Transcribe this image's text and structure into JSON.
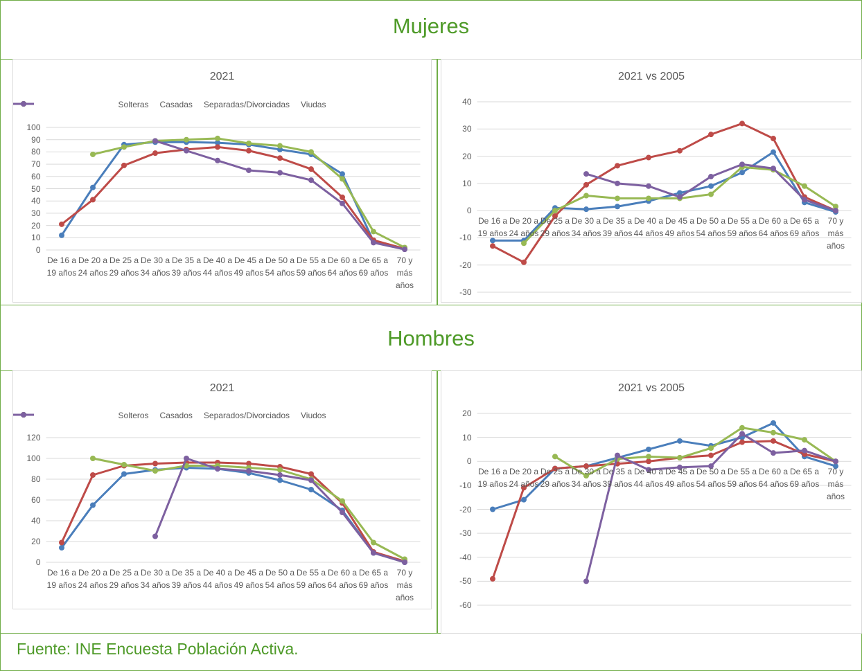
{
  "sections": [
    "Mujeres",
    "Hombres"
  ],
  "source": "Fuente: INE Encuesta Población Activa.",
  "chart_data": [
    {
      "type": "line",
      "title": "2021",
      "categories": [
        "De 16 a 19 años",
        "De 20 a 24 años",
        "De 25 a 29 años",
        "De 30 a 34 años",
        "De 35 a 39 años",
        "De 40 a 44 años",
        "De 45 a 49 años",
        "De 50 a 54 años",
        "De 55 a 59 años",
        "De 60 a 64 años",
        "De 65 a 69 años",
        "70 y más años"
      ],
      "series": [
        {
          "name": "Solteras",
          "color": "#4a7ebb",
          "values": [
            12,
            51,
            86,
            88,
            88,
            87.5,
            86,
            82,
            78,
            62,
            7,
            1
          ]
        },
        {
          "name": "Casadas",
          "color": "#be4b48",
          "values": [
            21,
            41,
            69,
            79,
            82,
            84,
            81,
            75,
            66,
            43,
            8,
            1
          ]
        },
        {
          "name": "Separadas/Divorciadas",
          "color": "#98b954",
          "values": [
            null,
            78,
            84,
            89,
            90,
            91,
            87,
            85,
            80,
            58,
            15,
            2
          ]
        },
        {
          "name": "Viudas",
          "color": "#7d60a0",
          "values": [
            null,
            null,
            null,
            89,
            81,
            73,
            65,
            63,
            57,
            38,
            6,
            0.5
          ]
        }
      ],
      "ylim": [
        0,
        100
      ],
      "yticks": [
        0,
        10,
        20,
        30,
        40,
        50,
        60,
        70,
        80,
        90,
        100
      ],
      "grid": true,
      "legend": "top"
    },
    {
      "type": "line",
      "title": "2021 vs 2005",
      "categories": [
        "De 16 a 19 años",
        "De 20 a 24 años",
        "De 25 a 29 años",
        "De 30 a 34 años",
        "De 35 a 39 años",
        "De 40 a 44 años",
        "De 45 a 49 años",
        "De 50 a 54 años",
        "De 55 a 59 años",
        "De 60 a 64 años",
        "De 65 a 69 años",
        "70 y más años"
      ],
      "series": [
        {
          "color": "#4a7ebb",
          "values": [
            -11,
            -11,
            1,
            0.5,
            1.5,
            3.5,
            6.5,
            9,
            14,
            21.5,
            3,
            -0.5
          ]
        },
        {
          "color": "#be4b48",
          "values": [
            -13,
            -19,
            -2,
            9.5,
            16.5,
            19.5,
            22,
            28,
            32,
            26.5,
            5,
            0
          ]
        },
        {
          "color": "#98b954",
          "values": [
            null,
            -12,
            0,
            5.5,
            4.5,
            4.5,
            4.5,
            6,
            16,
            15,
            9,
            1.5
          ]
        },
        {
          "color": "#7d60a0",
          "values": [
            null,
            null,
            null,
            13.5,
            10,
            9,
            5,
            12.5,
            17,
            15.5,
            4,
            0
          ]
        }
      ],
      "ylim": [
        -30,
        40
      ],
      "yticks": [
        -30,
        -20,
        -10,
        0,
        10,
        20,
        30,
        40
      ],
      "grid": true
    },
    {
      "type": "line",
      "title": "2021",
      "categories": [
        "De 16 a 19 años",
        "De 20 a 24 años",
        "De 25 a 29 años",
        "De 30 a 34 años",
        "De 35 a 39 años",
        "De 40 a 44 años",
        "De 45 a 49 años",
        "De 50 a 54 años",
        "De 55 a 59 años",
        "De 60 a 64 años",
        "De 65 a 69 años",
        "70 y más años"
      ],
      "series": [
        {
          "name": "Solteros",
          "color": "#4a7ebb",
          "values": [
            14,
            55,
            85,
            89,
            91,
            90,
            86,
            79,
            70,
            50,
            9,
            0
          ]
        },
        {
          "name": "Casados",
          "color": "#be4b48",
          "values": [
            19,
            84,
            93,
            95,
            96,
            96,
            95,
            92,
            85,
            57,
            10,
            1
          ]
        },
        {
          "name": "Separados/Divorciados",
          "color": "#98b954",
          "values": [
            null,
            100,
            94,
            88,
            93,
            93,
            91,
            89,
            80,
            59,
            19,
            3
          ]
        },
        {
          "name": "Viudos",
          "color": "#7d60a0",
          "values": [
            null,
            null,
            null,
            25,
            100,
            90,
            88,
            84,
            79,
            48,
            9,
            0
          ]
        }
      ],
      "ylim": [
        0,
        120
      ],
      "yticks": [
        0,
        20,
        40,
        60,
        80,
        100,
        120
      ],
      "grid": true,
      "legend": "top"
    },
    {
      "type": "line",
      "title": "2021 vs 2005",
      "categories": [
        "De 16 a 19 años",
        "De 20 a 24 años",
        "De 25 a 29 años",
        "De 30 a 34 años",
        "De 35 a 39 años",
        "De 40 a 44 años",
        "De 45 a 49 años",
        "De 50 a 54 años",
        "De 55 a 59 años",
        "De 60 a 64 años",
        "De 65 a 69 años",
        "70 y más años"
      ],
      "series": [
        {
          "color": "#4a7ebb",
          "values": [
            -20,
            -16,
            -3,
            -2,
            1.5,
            5,
            8.5,
            6.5,
            10,
            16,
            2,
            -2
          ]
        },
        {
          "color": "#be4b48",
          "values": [
            -49,
            -11,
            -3,
            -2,
            -1,
            0,
            1.5,
            2.5,
            8,
            8.5,
            3,
            0
          ]
        },
        {
          "color": "#98b954",
          "values": [
            null,
            null,
            2,
            -6,
            1,
            2,
            1.5,
            5.5,
            14,
            12,
            9,
            0
          ]
        },
        {
          "color": "#7d60a0",
          "values": [
            null,
            null,
            null,
            -50,
            2.5,
            -3.5,
            -2.5,
            -2,
            11.5,
            3.5,
            4.5,
            0
          ]
        }
      ],
      "ylim": [
        -60,
        20
      ],
      "yticks": [
        -60,
        -50,
        -40,
        -30,
        -20,
        -10,
        0,
        10,
        20
      ],
      "grid": true
    }
  ]
}
